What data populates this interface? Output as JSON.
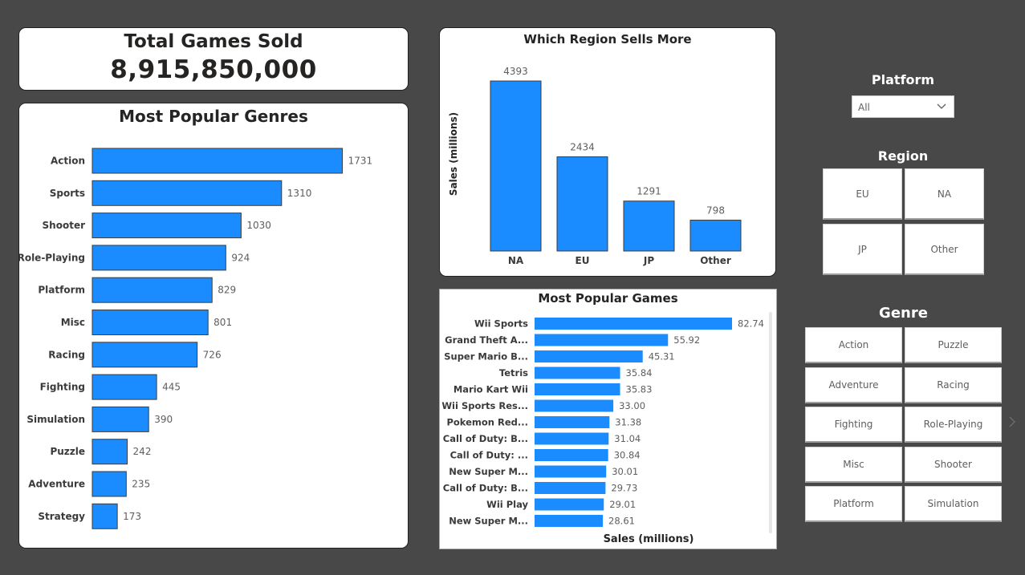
{
  "kpi": {
    "label": "Total Games Sold",
    "value": "8,915,850,000"
  },
  "genres_chart": {
    "title": "Most Popular Genres",
    "bar_color": "#1a8cff"
  },
  "regions_chart": {
    "title": "Which Region Sells More",
    "ylabel": "Sales (millions)",
    "bar_color": "#1a8cff"
  },
  "games_chart": {
    "title": "Most Popular Games",
    "xlabel": "Sales (millions)",
    "bar_color": "#1a8cff"
  },
  "chart_data": [
    {
      "type": "bar",
      "orientation": "horizontal",
      "title": "Most Popular Genres",
      "categories": [
        "Action",
        "Sports",
        "Shooter",
        "Role-Playing",
        "Platform",
        "Misc",
        "Racing",
        "Fighting",
        "Simulation",
        "Puzzle",
        "Adventure",
        "Strategy"
      ],
      "values": [
        1731,
        1310,
        1030,
        924,
        829,
        801,
        726,
        445,
        390,
        242,
        235,
        173
      ],
      "value_labels": [
        "1731",
        "1310",
        "1030",
        "924",
        "829",
        "801",
        "726",
        "445",
        "390",
        "242",
        "235",
        "173"
      ],
      "xlim": [
        0,
        2000
      ]
    },
    {
      "type": "bar",
      "orientation": "vertical",
      "title": "Which Region Sells More",
      "categories": [
        "NA",
        "EU",
        "JP",
        "Other"
      ],
      "values": [
        4393,
        2434,
        1291,
        798
      ],
      "value_labels": [
        "4393",
        "2434",
        "1291",
        "798"
      ],
      "ylabel": "Sales (millions)",
      "ylim": [
        0,
        4393
      ]
    },
    {
      "type": "bar",
      "orientation": "horizontal",
      "title": "Most Popular Games",
      "categories": [
        "Wii Sports",
        "Grand Theft A...",
        "Super Mario B...",
        "Tetris",
        "Mario Kart Wii",
        "Wii Sports Res...",
        "Pokemon Red...",
        "Call of Duty: B...",
        "Call of Duty: ...",
        "New Super M...",
        "Call of Duty: B...",
        "Wii Play",
        "New Super M..."
      ],
      "values": [
        82.74,
        55.92,
        45.31,
        35.84,
        35.83,
        33.0,
        31.38,
        31.04,
        30.84,
        30.01,
        29.73,
        29.01,
        28.61
      ],
      "value_labels": [
        "82.74",
        "55.92",
        "45.31",
        "35.84",
        "35.83",
        "33.00",
        "31.38",
        "31.04",
        "30.84",
        "30.01",
        "29.73",
        "29.01",
        "28.61"
      ],
      "xlabel": "Sales (millions)",
      "xlim": [
        0,
        82.74
      ]
    }
  ],
  "platform_slicer": {
    "title": "Platform",
    "selected": "All",
    "chevron_icon": "chevron-down-icon"
  },
  "region_slicer": {
    "title": "Region",
    "options": [
      "EU",
      "NA",
      "JP",
      "Other"
    ]
  },
  "genre_slicer": {
    "title": "Genre",
    "options": [
      "Action",
      "Puzzle",
      "Adventure",
      "Racing",
      "Fighting",
      "Role-Playing",
      "Misc",
      "Shooter",
      "Platform",
      "Simulation"
    ]
  },
  "nav": {
    "next_page_icon": "chevron-right-icon"
  }
}
